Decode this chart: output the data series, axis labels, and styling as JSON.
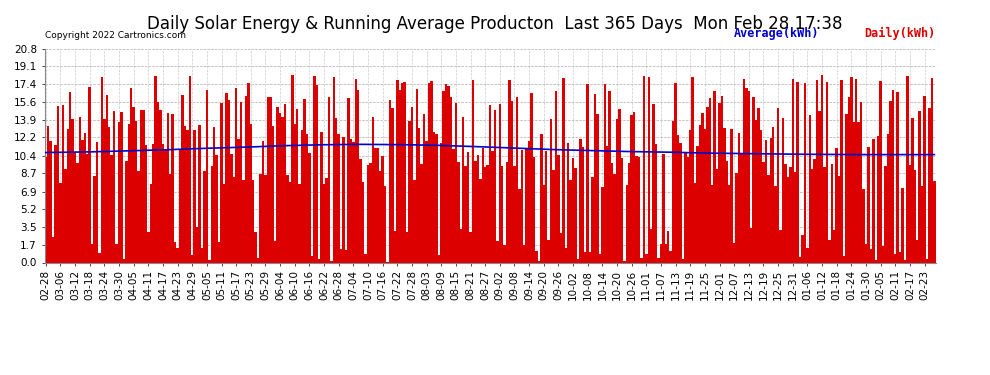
{
  "title": "Daily Solar Energy & Running Average Producton  Last 365 Days  Mon Feb 28 17:38",
  "copyright": "Copyright 2022 Cartronics.com",
  "legend_average": "Average(kWh)",
  "legend_daily": "Daily(kWh)",
  "yticks": [
    0.0,
    1.7,
    3.5,
    5.2,
    6.9,
    8.7,
    10.4,
    12.2,
    13.9,
    15.6,
    17.4,
    19.1,
    20.8
  ],
  "ymax": 20.8,
  "ymin": 0.0,
  "bar_color": "#dd0000",
  "avg_color": "#0000cc",
  "background_color": "#ffffff",
  "grid_color": "#999999",
  "title_fontsize": 12,
  "axis_fontsize": 7.5,
  "avg_linewidth": 1.2,
  "xtick_labels": [
    "02-28",
    "03-06",
    "03-12",
    "03-18",
    "03-24",
    "03-30",
    "04-05",
    "04-11",
    "04-17",
    "04-23",
    "04-29",
    "05-05",
    "05-11",
    "05-17",
    "05-23",
    "05-29",
    "06-04",
    "06-10",
    "06-16",
    "06-22",
    "06-28",
    "07-04",
    "07-10",
    "07-16",
    "07-22",
    "07-28",
    "08-03",
    "08-09",
    "08-15",
    "08-21",
    "08-27",
    "09-02",
    "09-08",
    "09-14",
    "09-20",
    "09-26",
    "10-02",
    "10-08",
    "10-14",
    "10-20",
    "10-26",
    "11-01",
    "11-07",
    "11-13",
    "11-19",
    "11-25",
    "12-01",
    "12-07",
    "12-13",
    "12-19",
    "12-25",
    "12-31",
    "01-06",
    "01-12",
    "01-18",
    "01-24",
    "01-30",
    "02-05",
    "02-11",
    "02-17",
    "02-23"
  ],
  "num_days": 365,
  "avg_trajectory": [
    10.7,
    10.75,
    10.85,
    10.95,
    11.1,
    11.2,
    11.35,
    11.45,
    11.5,
    11.48,
    11.42,
    11.3,
    11.15,
    11.0,
    10.9,
    10.8,
    10.75,
    10.65,
    10.6,
    10.55,
    10.52,
    10.5,
    10.5,
    10.5
  ]
}
